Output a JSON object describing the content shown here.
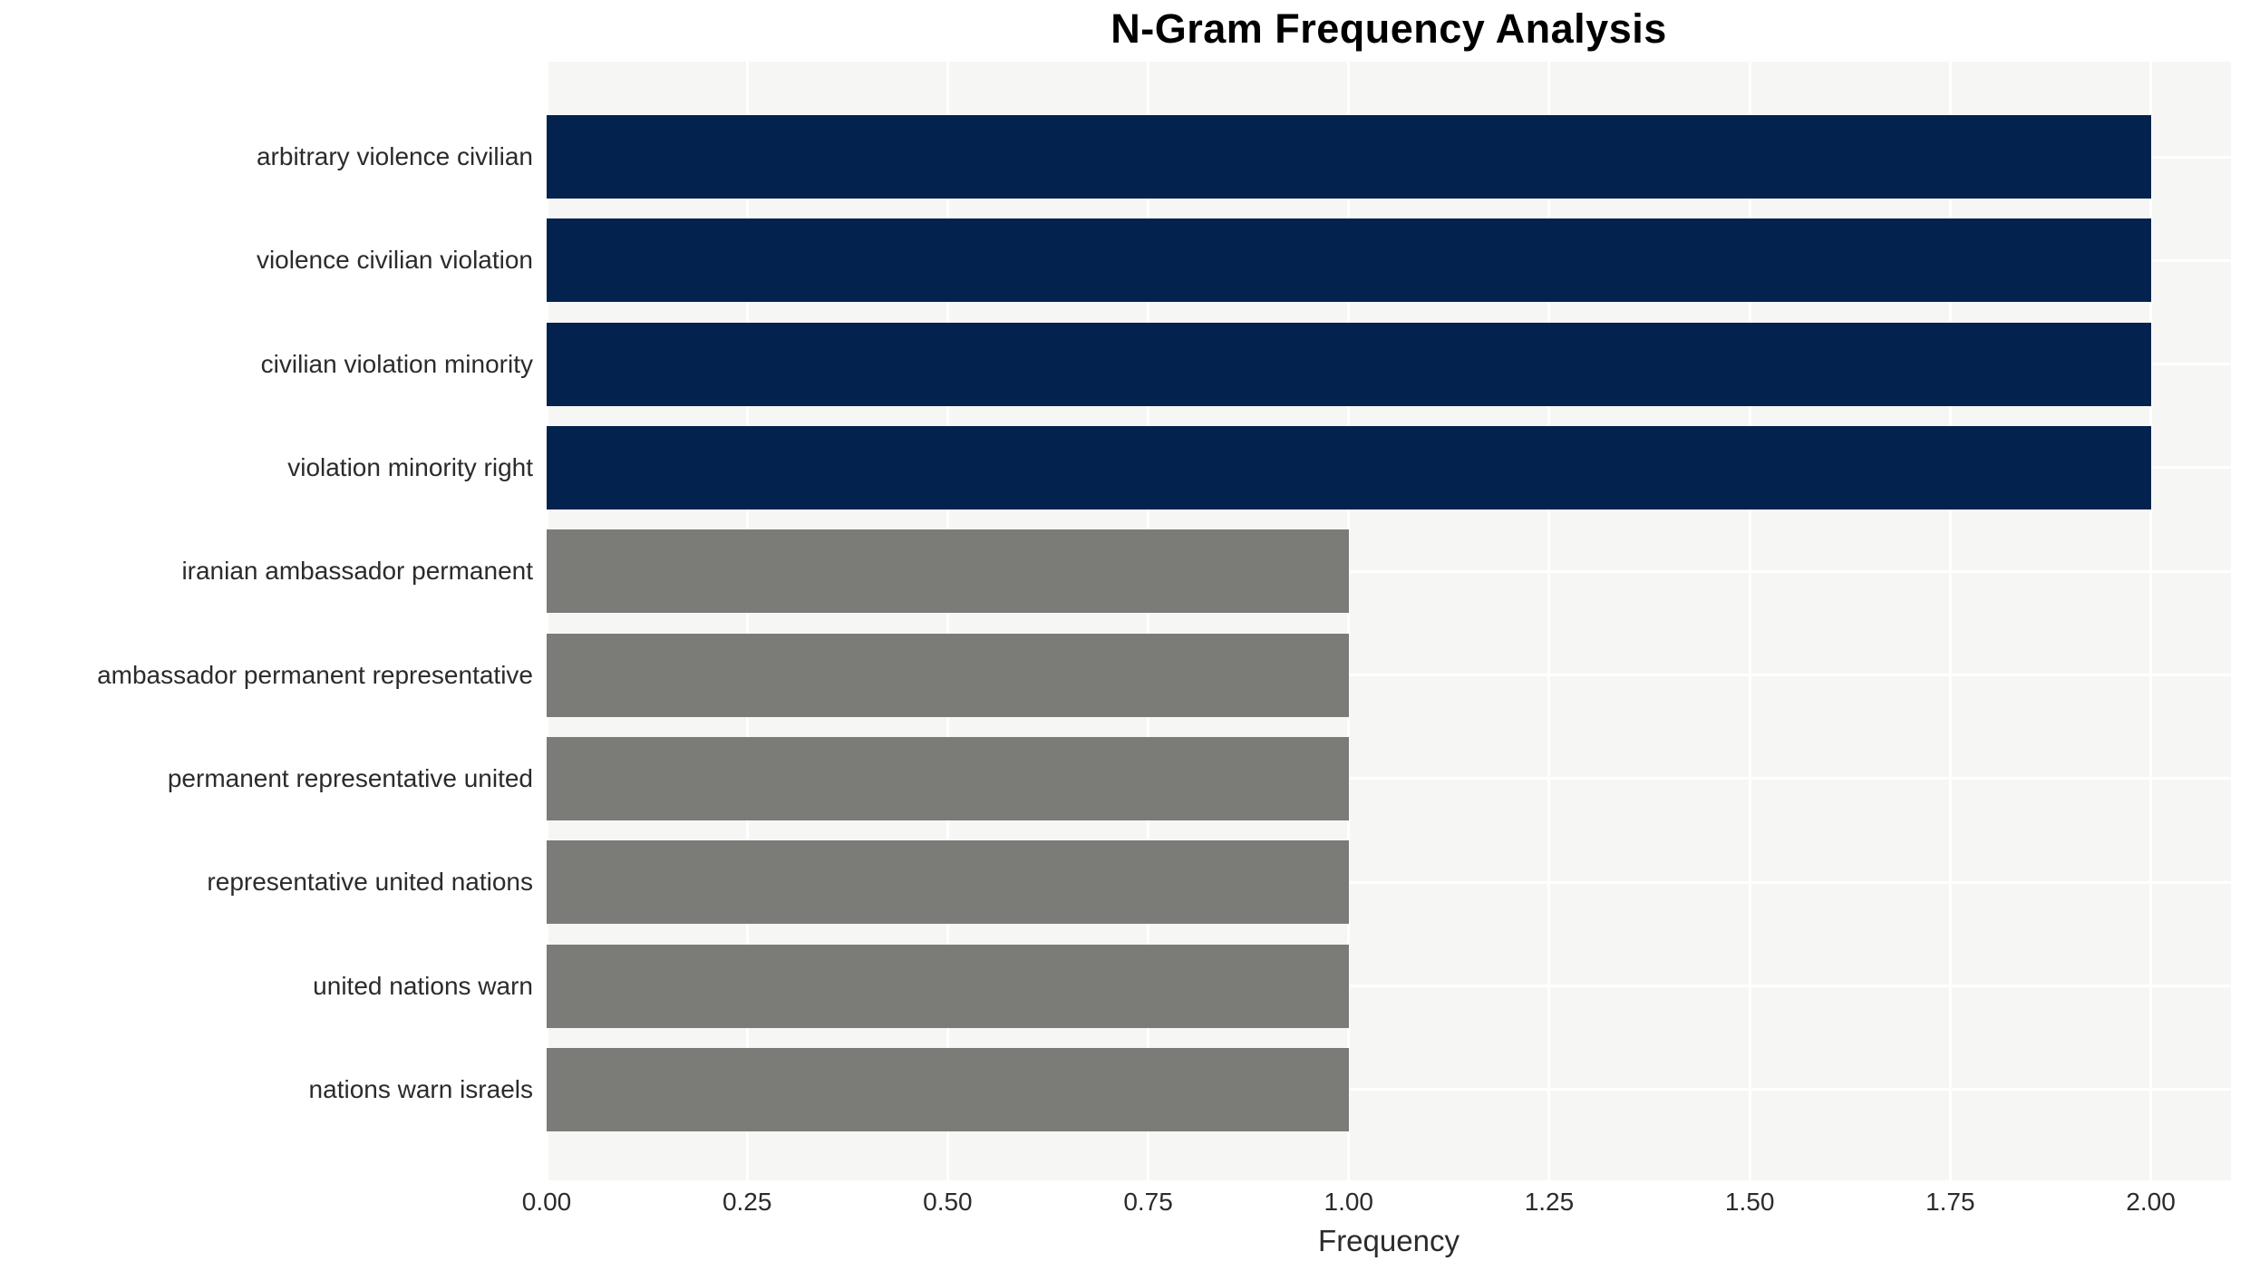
{
  "chart_data": {
    "type": "bar",
    "orientation": "horizontal",
    "title": "N-Gram Frequency Analysis",
    "xlabel": "Frequency",
    "ylabel": "",
    "categories": [
      "arbitrary violence civilian",
      "violence civilian violation",
      "civilian violation minority",
      "violation minority right",
      "iranian ambassador permanent",
      "ambassador permanent representative",
      "permanent representative united",
      "representative united nations",
      "united nations warn",
      "nations warn israels"
    ],
    "values": [
      2.0,
      2.0,
      2.0,
      2.0,
      1.0,
      1.0,
      1.0,
      1.0,
      1.0,
      1.0
    ],
    "bar_colors": [
      "#03224e",
      "#03224e",
      "#03224e",
      "#03224e",
      "#7b7b78",
      "#7b7b78",
      "#7b7b78",
      "#7b7b78",
      "#7b7b78",
      "#7b7b78"
    ],
    "xlim": [
      0,
      2.1
    ],
    "xticks": {
      "values": [
        0.0,
        0.25,
        0.5,
        0.75,
        1.0,
        1.25,
        1.5,
        1.75,
        2.0
      ],
      "labels": [
        "0.00",
        "0.25",
        "0.50",
        "0.75",
        "1.00",
        "1.25",
        "1.50",
        "1.75",
        "2.00"
      ]
    },
    "grid": true,
    "legend": false,
    "colors": {
      "bar_high": "#03224e",
      "bar_low": "#7b7b78",
      "plot_background": "#f6f6f5",
      "gridline": "#ffffff",
      "tick_text": "#2b2b2b",
      "title_text": "#000000"
    }
  }
}
